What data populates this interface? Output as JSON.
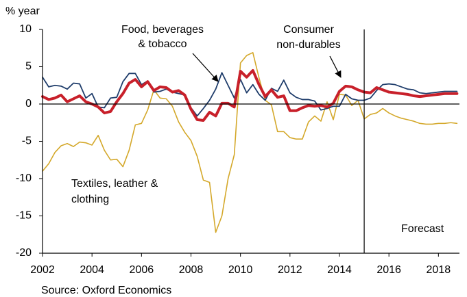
{
  "chart_data": {
    "type": "line",
    "y_axis_label": "% year",
    "source": "Source: Oxford Economics",
    "annotations": [
      {
        "lines": [
          "Food, beverages",
          "& tobacco"
        ]
      },
      {
        "lines": [
          "Consumer",
          "non-durables"
        ]
      },
      {
        "lines": [
          "Textiles, leather &",
          "clothing"
        ]
      }
    ],
    "forecast_label": "Forecast",
    "forecast_start": 2015,
    "xlim": [
      2002,
      2018.85
    ],
    "xticks": [
      2002,
      2004,
      2006,
      2008,
      2010,
      2012,
      2014,
      2016,
      2018
    ],
    "ylim": [
      -20,
      10
    ],
    "yticks": [
      -20,
      -15,
      -10,
      -5,
      0,
      5,
      10
    ],
    "x": [
      2002,
      2002.25,
      2002.5,
      2002.75,
      2003,
      2003.25,
      2003.5,
      2003.75,
      2004,
      2004.25,
      2004.5,
      2004.75,
      2005,
      2005.25,
      2005.5,
      2005.75,
      2006,
      2006.25,
      2006.5,
      2006.75,
      2007,
      2007.25,
      2007.5,
      2007.75,
      2008,
      2008.25,
      2008.5,
      2008.75,
      2009,
      2009.25,
      2009.5,
      2009.75,
      2010,
      2010.25,
      2010.5,
      2010.75,
      2011,
      2011.25,
      2011.5,
      2011.75,
      2012,
      2012.25,
      2012.5,
      2012.75,
      2013,
      2013.25,
      2013.5,
      2013.75,
      2014,
      2014.25,
      2014.5,
      2014.75,
      2015,
      2015.25,
      2015.5,
      2015.75,
      2016,
      2016.25,
      2016.5,
      2016.75,
      2017,
      2017.25,
      2017.5,
      2017.75,
      2018,
      2018.25,
      2018.5,
      2018.75
    ],
    "series": [
      {
        "name": "Textiles, leather & clothing",
        "color": "#d4a82a",
        "width": 1.6,
        "values": [
          -9,
          -8,
          -6.5,
          -5.6,
          -5.3,
          -5.7,
          -5.1,
          -5.2,
          -5.5,
          -4.2,
          -6.2,
          -7.5,
          -7.4,
          -8.4,
          -6.2,
          -2.8,
          -2.6,
          -0.8,
          1.9,
          0.8,
          0.7,
          -0.3,
          -2.4,
          -3.8,
          -4.9,
          -7,
          -10.2,
          -10.5,
          -17.2,
          -15,
          -10,
          -6.8,
          5.5,
          6.5,
          6.9,
          3.5,
          0.5,
          -0.1,
          -3.7,
          -3.7,
          -4.5,
          -4.7,
          -4.7,
          -2.4,
          -1.6,
          -2.3,
          0.3,
          -2.1,
          1.3,
          1.2,
          -0.2,
          0.5,
          -2,
          -1.4,
          -1.2,
          -0.6,
          -1.2,
          -1.6,
          -1.9,
          -2.1,
          -2.3,
          -2.6,
          -2.7,
          -2.7,
          -2.6,
          -2.6,
          -2.5,
          -2.6
        ]
      },
      {
        "name": "Food, beverages & tobacco",
        "color": "#1f3d6b",
        "width": 1.8,
        "values": [
          3.6,
          2.3,
          2.5,
          2.4,
          2.0,
          2.8,
          2.7,
          0.8,
          1.4,
          -0.4,
          -0.5,
          0.8,
          0.9,
          3.0,
          4.1,
          4.1,
          2.6,
          3.1,
          1.6,
          1.7,
          2.0,
          1.6,
          1.4,
          1.2,
          -0.5,
          -1.6,
          -0.6,
          0.5,
          2.0,
          4.2,
          2.5,
          0.8,
          3.3,
          1.5,
          2.6,
          1.3,
          0.5,
          2.1,
          1.7,
          3.2,
          1.5,
          0.9,
          0.6,
          0.6,
          0.4,
          -0.8,
          -0.6,
          -0.3,
          -0.3,
          1.3,
          0.7,
          0.5,
          0.5,
          0.8,
          1.8,
          2.6,
          2.7,
          2.6,
          2.3,
          2.0,
          1.9,
          1.5,
          1.4,
          1.5,
          1.6,
          1.7,
          1.7,
          1.7
        ]
      },
      {
        "name": "Consumer non-durables",
        "color": "#c8202a",
        "width": 4,
        "values": [
          1.0,
          0.6,
          0.8,
          1.2,
          0.3,
          0.7,
          1.1,
          0.3,
          0,
          -0.4,
          -1.2,
          -1.0,
          0.3,
          1.4,
          2.8,
          3.3,
          2.3,
          3.0,
          1.8,
          2.3,
          2.2,
          1.6,
          1.8,
          1.2,
          -0.7,
          -2.1,
          -2.2,
          -1.1,
          -1.6,
          0.1,
          0.1,
          -0.4,
          4.4,
          3.6,
          4.5,
          2.6,
          1.0,
          1.9,
          0.9,
          1.1,
          -0.9,
          -0.9,
          -0.5,
          -0.2,
          -0.3,
          -0.2,
          -0.4,
          0.1,
          1.7,
          2.4,
          2.3,
          1.9,
          1.6,
          1.5,
          2.2,
          1.9,
          1.6,
          1.5,
          1.4,
          1.3,
          1.1,
          1.0,
          1.1,
          1.2,
          1.3,
          1.4,
          1.4,
          1.4
        ]
      }
    ]
  }
}
